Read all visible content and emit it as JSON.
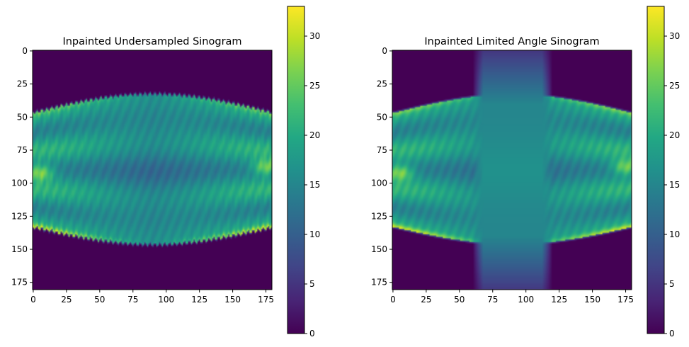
{
  "chart_data": [
    {
      "type": "heatmap",
      "title": "Inpainted Undersampled Sinogram",
      "xlabel": "",
      "ylabel": "",
      "xlim": [
        0,
        180
      ],
      "ylim": [
        181,
        0
      ],
      "x_ticks": [
        0,
        25,
        50,
        75,
        100,
        125,
        150,
        175
      ],
      "y_ticks": [
        0,
        25,
        50,
        75,
        100,
        125,
        150,
        175
      ],
      "colorbar": {
        "range": [
          0,
          33
        ],
        "ticks": [
          0,
          5,
          10,
          15,
          20,
          25,
          30
        ],
        "colormap": "viridis"
      },
      "features": {
        "support_top_min": 33,
        "support_top_edge": 47,
        "support_bottom_edge": 133,
        "support_bottom_max": 146,
        "hot_spots": [
          {
            "angle": 5,
            "row": 92,
            "value": 32
          },
          {
            "angle": 175,
            "row": 88,
            "value": 31
          }
        ],
        "edge_ripple": true,
        "missing_angle_band": null
      }
    },
    {
      "type": "heatmap",
      "title": "Inpainted Limited Angle Sinogram",
      "xlabel": "",
      "ylabel": "",
      "xlim": [
        0,
        180
      ],
      "ylim": [
        181,
        0
      ],
      "x_ticks": [
        0,
        25,
        50,
        75,
        100,
        125,
        150,
        175
      ],
      "y_ticks": [
        0,
        25,
        50,
        75,
        100,
        125,
        150,
        175
      ],
      "colorbar": {
        "range": [
          0,
          33
        ],
        "ticks": [
          0,
          5,
          10,
          15,
          20,
          25,
          30
        ],
        "colormap": "viridis"
      },
      "features": {
        "support_top_min": 33,
        "support_top_edge": 47,
        "support_bottom_edge": 133,
        "support_bottom_max": 146,
        "hot_spots": [
          {
            "angle": 5,
            "row": 92,
            "value": 32
          },
          {
            "angle": 175,
            "row": 88,
            "value": 31
          }
        ],
        "edge_ripple": false,
        "missing_angle_band": {
          "from": 60,
          "to": 120,
          "fill_value": 15
        }
      }
    }
  ]
}
